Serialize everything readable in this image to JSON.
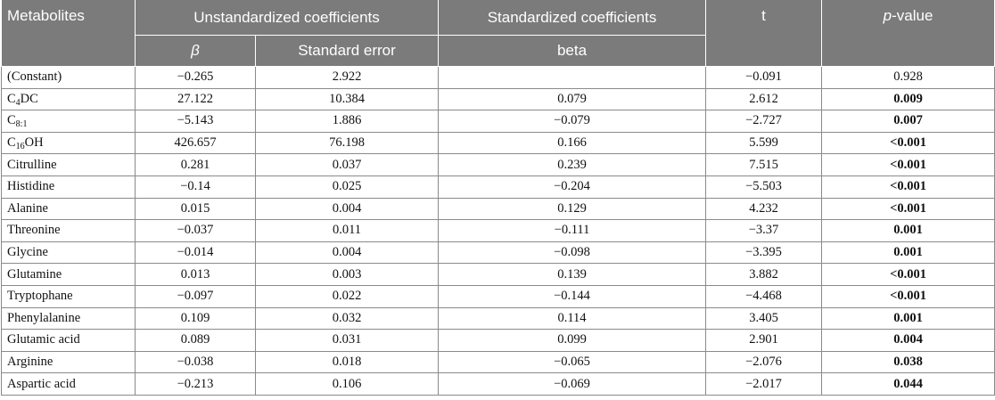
{
  "headers": {
    "metabolites": "Metabolites",
    "unstandardized": "Unstandardized coefficients",
    "standardized": "Standardized coefficients",
    "t": "t",
    "p_value_italic": "p",
    "p_value_rest": "-value",
    "beta_symbol": "β",
    "standard_error": "Standard error",
    "beta": "beta"
  },
  "rows": [
    {
      "name": "(Constant)",
      "name_sub": "",
      "name_tail": "",
      "b": "−0.265",
      "se": "2.922",
      "beta": "",
      "t": "−0.091",
      "p": "0.928",
      "p_bold": false
    },
    {
      "name": "C",
      "name_sub": "4",
      "name_tail": "DC",
      "b": "27.122",
      "se": "10.384",
      "beta": "0.079",
      "t": "2.612",
      "p": "0.009",
      "p_bold": true
    },
    {
      "name": "C",
      "name_sub": "8:1",
      "name_tail": "",
      "b": "−5.143",
      "se": "1.886",
      "beta": "−0.079",
      "t": "−2.727",
      "p": "0.007",
      "p_bold": true
    },
    {
      "name": "C",
      "name_sub": "16",
      "name_tail": "OH",
      "b": "426.657",
      "se": "76.198",
      "beta": "0.166",
      "t": "5.599",
      "p": "<0.001",
      "p_bold": true
    },
    {
      "name": "Citrulline",
      "name_sub": "",
      "name_tail": "",
      "b": "0.281",
      "se": "0.037",
      "beta": "0.239",
      "t": "7.515",
      "p": "<0.001",
      "p_bold": true
    },
    {
      "name": "Histidine",
      "name_sub": "",
      "name_tail": "",
      "b": "−0.14",
      "se": "0.025",
      "beta": "−0.204",
      "t": "−5.503",
      "p": "<0.001",
      "p_bold": true
    },
    {
      "name": "Alanine",
      "name_sub": "",
      "name_tail": "",
      "b": "0.015",
      "se": "0.004",
      "beta": "0.129",
      "t": "4.232",
      "p": "<0.001",
      "p_bold": true
    },
    {
      "name": "Threonine",
      "name_sub": "",
      "name_tail": "",
      "b": "−0.037",
      "se": "0.011",
      "beta": "−0.111",
      "t": "−3.37",
      "p": "0.001",
      "p_bold": true
    },
    {
      "name": "Glycine",
      "name_sub": "",
      "name_tail": "",
      "b": "−0.014",
      "se": "0.004",
      "beta": "−0.098",
      "t": "−3.395",
      "p": "0.001",
      "p_bold": true
    },
    {
      "name": "Glutamine",
      "name_sub": "",
      "name_tail": "",
      "b": "0.013",
      "se": "0.003",
      "beta": "0.139",
      "t": "3.882",
      "p": "<0.001",
      "p_bold": true
    },
    {
      "name": "Tryptophane",
      "name_sub": "",
      "name_tail": "",
      "b": "−0.097",
      "se": "0.022",
      "beta": "−0.144",
      "t": "−4.468",
      "p": "<0.001",
      "p_bold": true
    },
    {
      "name": "Phenylalanine",
      "name_sub": "",
      "name_tail": "",
      "b": "0.109",
      "se": "0.032",
      "beta": "0.114",
      "t": "3.405",
      "p": "0.001",
      "p_bold": true
    },
    {
      "name": "Glutamic acid",
      "name_sub": "",
      "name_tail": "",
      "b": "0.089",
      "se": "0.031",
      "beta": "0.099",
      "t": "2.901",
      "p": "0.004",
      "p_bold": true
    },
    {
      "name": "Arginine",
      "name_sub": "",
      "name_tail": "",
      "b": "−0.038",
      "se": "0.018",
      "beta": "−0.065",
      "t": "−2.076",
      "p": "0.038",
      "p_bold": true
    },
    {
      "name": "Aspartic acid",
      "name_sub": "",
      "name_tail": "",
      "b": "−0.213",
      "se": "0.106",
      "beta": "−0.069",
      "t": "−2.017",
      "p": "0.044",
      "p_bold": true
    }
  ]
}
